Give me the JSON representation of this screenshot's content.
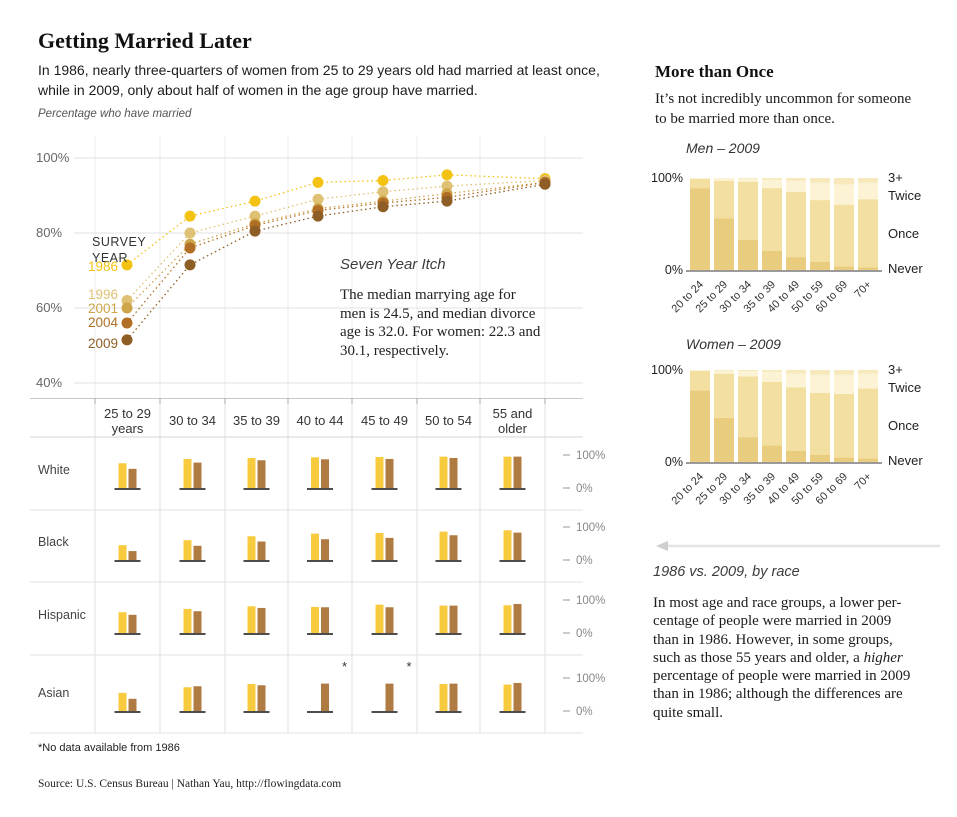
{
  "header": {
    "title": "Getting Married Later",
    "subtitle_line1": "In 1986, nearly three-quarters of women from 25 to 29 years old had married at least once,",
    "subtitle_line2": "while in 2009, only about half of women in the age group have married."
  },
  "main_chart_labels": {
    "axis_title": "Percentage who have married",
    "legend_title_line1": "SURVEY",
    "legend_title_line2": "YEAR"
  },
  "annotation": {
    "title": "Seven Year Itch",
    "lines": [
      "The median marrying age for",
      "men is 24.5, and median divorce",
      "age is 32.0. For women: 22.3 and",
      "30.1, respectively."
    ]
  },
  "more_than_once": {
    "title": "More than Once",
    "lines": [
      "It’s not incredibly uncommon for someone",
      "to be married more than once."
    ]
  },
  "men_chart_title": "Men – 2009",
  "women_chart_title": "Women – 2009",
  "race_compare": {
    "title": "1986 vs. 2009, by race",
    "lines_before": [
      "In most age and race groups, a lower per-",
      "centage of people were married in 2009",
      "than in 1986. However, in some groups,"
    ],
    "line4_pre": "such as those 55 years and older, a ",
    "line4_italic": "higher",
    "lines_after": [
      "percentage of people were married in 2009",
      "than in 1986; although the differences are",
      "quite small."
    ]
  },
  "footnote": "*No data available from 1986",
  "source": "Source: U.S. Census Bureau | Nathan Yau, http://flowingdata.com",
  "chart_data": [
    {
      "id": "survey_lines",
      "type": "line",
      "title": "Percentage who have married",
      "ylabel": "Percentage who have married",
      "ylim": [
        40,
        100
      ],
      "y_ticks": [
        100,
        80,
        60,
        40
      ],
      "grid": true,
      "legend_title": "SURVEY YEAR",
      "x_categories": [
        "25 to 29 years",
        "30 to 34",
        "35 to 39",
        "40 to 44",
        "45 to 49",
        "50 to 54",
        "55 and older"
      ],
      "series": [
        {
          "name": "1986",
          "color": "#F3C212",
          "values": [
            71.5,
            84.5,
            88.5,
            93.5,
            94,
            95.5,
            94.5
          ]
        },
        {
          "name": "1996",
          "color": "#DFC173",
          "values": [
            62,
            80,
            84.5,
            89,
            91,
            92.5,
            94
          ]
        },
        {
          "name": "2001",
          "color": "#CFA54A",
          "values": [
            60,
            77,
            82.5,
            86.5,
            88.5,
            90.5,
            93.5
          ]
        },
        {
          "name": "2004",
          "color": "#B06F24",
          "values": [
            56,
            76,
            82,
            86,
            88,
            89.5,
            93.5
          ]
        },
        {
          "name": "2009",
          "color": "#8E5E26",
          "values": [
            51.5,
            71.5,
            80.5,
            84.5,
            87,
            88.5,
            93
          ]
        }
      ]
    },
    {
      "id": "race_bars",
      "type": "bar",
      "stacked": false,
      "title": "1986 vs. 2009, by race",
      "categories": [
        "25 to 29 years",
        "30 to 34",
        "35 to 39",
        "40 to 44",
        "45 to 49",
        "50 to 54",
        "55 and older"
      ],
      "column_labels": [
        [
          "25 to 29",
          "years"
        ],
        [
          "30 to 34"
        ],
        [
          "35 to 39"
        ],
        [
          "40 to 44"
        ],
        [
          "45 to 49"
        ],
        [
          "50 to 54"
        ],
        [
          "55 and",
          "older"
        ]
      ],
      "series_colors": {
        "1986": "#F8CB3F",
        "2009": "#AF7B42"
      },
      "axis_labels": [
        "100%",
        "0%"
      ],
      "no_data_marker": "*",
      "rows": [
        {
          "label": "White",
          "y1986": [
            75,
            88,
            91,
            93,
            94,
            95,
            95
          ],
          "y2009": [
            58,
            77,
            84,
            87,
            88,
            91,
            95
          ]
        },
        {
          "label": "Black",
          "y1986": [
            45,
            60,
            72,
            80,
            82,
            86,
            90
          ],
          "y2009": [
            27,
            43,
            56,
            63,
            67,
            75,
            83
          ]
        },
        {
          "label": "Hispanic",
          "y1986": [
            63,
            73,
            81,
            79,
            86,
            83,
            84
          ],
          "y2009": [
            55,
            66,
            76,
            78,
            78,
            83,
            88
          ]
        },
        {
          "label": "Asian",
          "y1986": [
            55,
            72,
            82,
            null,
            null,
            82,
            80
          ],
          "y2009": [
            37,
            75,
            78,
            83,
            83,
            83,
            85
          ]
        }
      ]
    },
    {
      "id": "men_2009",
      "type": "bar",
      "stacked": true,
      "title": "Men – 2009",
      "categories": [
        "20 to 24",
        "25 to 29",
        "30 to 34",
        "35 to 39",
        "40 to 49",
        "50 to 59",
        "60 to 69",
        "70+"
      ],
      "y_ticks": [
        "100%",
        "0%"
      ],
      "legend": [
        "3+",
        "Twice",
        "Once",
        "Never"
      ],
      "segment_colors": {
        "Never": "#EACC7F",
        "Once": "#F3E0A0",
        "Twice": "#FBF3D3",
        "3+": "#F7E9BB"
      },
      "series": [
        {
          "name": "Never",
          "values": [
            89,
            56,
            33,
            21,
            14,
            9,
            4,
            3
          ]
        },
        {
          "name": "Once",
          "values": [
            10,
            41,
            63,
            68,
            71,
            67,
            67,
            74
          ]
        },
        {
          "name": "Twice",
          "values": [
            1,
            3,
            3.5,
            9,
            12,
            19,
            22,
            18
          ]
        },
        {
          "name": "3+",
          "values": [
            0,
            0,
            0.5,
            2,
            3,
            5,
            7,
            5
          ]
        }
      ]
    },
    {
      "id": "women_2009",
      "type": "bar",
      "stacked": true,
      "title": "Women – 2009",
      "categories": [
        "20 to 24",
        "25 to 29",
        "30 to 34",
        "35 to 39",
        "40 to 49",
        "50 to 59",
        "60 to 69",
        "70+"
      ],
      "y_ticks": [
        "100%",
        "0%"
      ],
      "legend": [
        "3+",
        "Twice",
        "Once",
        "Never"
      ],
      "segment_colors": {
        "Never": "#EACC7F",
        "Once": "#F3E0A0",
        "Twice": "#FBF3D3",
        "3+": "#F7E9BB"
      },
      "series": [
        {
          "name": "Never",
          "values": [
            78,
            48,
            27,
            18,
            12,
            8,
            5,
            4
          ]
        },
        {
          "name": "Once",
          "values": [
            21,
            48,
            66,
            69,
            69,
            67,
            69,
            76
          ]
        },
        {
          "name": "Twice",
          "values": [
            1,
            3.5,
            6,
            11,
            15,
            20,
            21,
            16
          ]
        },
        {
          "name": "3+",
          "values": [
            0,
            0.5,
            1,
            2,
            4,
            5,
            5,
            4
          ]
        }
      ]
    }
  ]
}
